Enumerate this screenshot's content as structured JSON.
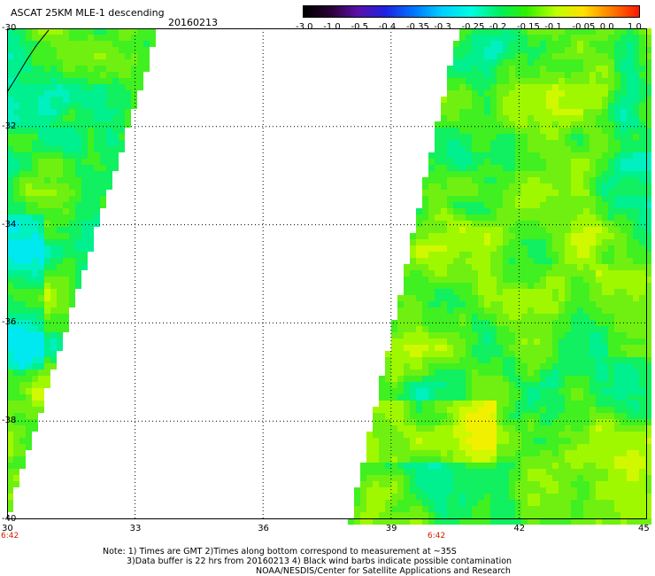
{
  "title": "ASCAT 25KM MLE-1 descending",
  "date": "20160213",
  "colorbar": {
    "labels": [
      "-3.0",
      "-1.0",
      "-0.5",
      "-0.4",
      "-0.35",
      "-0.3",
      "-0.25",
      "-0.2",
      "-0.15",
      "-0.1",
      "-0.05",
      "0.0",
      "1.0"
    ]
  },
  "map": {
    "lat_labels": [
      "-30",
      "-32",
      "-34",
      "-36",
      "-38",
      "-40"
    ],
    "lon_labels": [
      "30",
      "33",
      "36",
      "39",
      "42",
      "45"
    ],
    "time_labels": [
      "6:42",
      "6:42"
    ]
  },
  "notes": [
    "Note: 1) Times are GMT 2)Times along bottom correspond to measurement at ~35S",
    "3)Data buffer is 22 hrs from 20160213 4) Black wind barbs indicate possible contamination",
    "NOAA/NESDIS/Center for Satellite Applications and Research"
  ]
}
